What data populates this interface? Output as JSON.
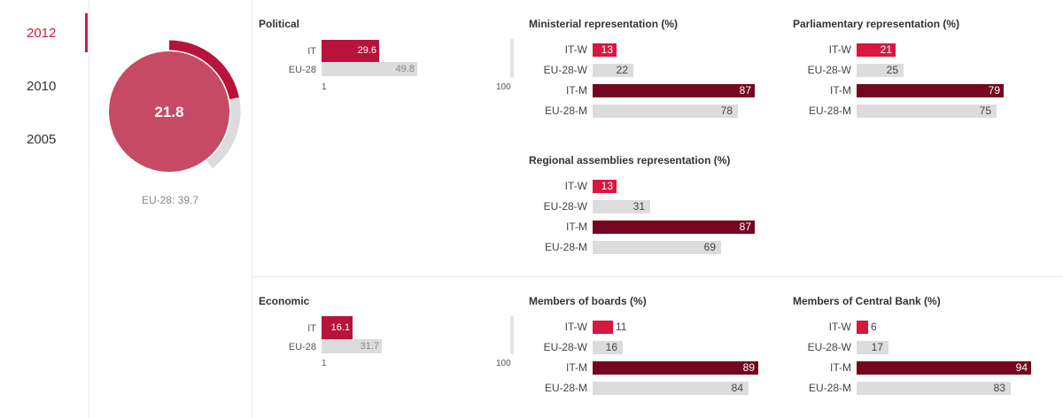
{
  "years": [
    "2012",
    "2010",
    "2005"
  ],
  "selected_year": "2012",
  "gauge": {
    "value": "21.8",
    "value_num": 21.8,
    "eu_value": 39.7,
    "caption": "EU-28: 39.7"
  },
  "colors": {
    "accent": "#c8203f",
    "dark": "#7a0a22",
    "eu": "#dcdcdc",
    "gauge_fill": "#c64a64"
  },
  "political": {
    "title": "Political",
    "rows": [
      {
        "label": "IT",
        "value": "29.6"
      },
      {
        "label": "EU-28",
        "value": "49.8"
      }
    ],
    "axis_min": "1",
    "axis_max": "100"
  },
  "economic": {
    "title": "Economic",
    "rows": [
      {
        "label": "IT",
        "value": "16.1"
      },
      {
        "label": "EU-28",
        "value": "31.7"
      }
    ],
    "axis_min": "1",
    "axis_max": "100"
  },
  "chart_data": [
    {
      "type": "bar",
      "title": "Political",
      "categories": [
        "IT",
        "EU-28"
      ],
      "values": [
        29.6,
        49.8
      ],
      "xlim": [
        1,
        100
      ]
    },
    {
      "type": "bar",
      "title": "Ministerial representation (%)",
      "categories": [
        "IT-W",
        "EU-28-W",
        "IT-M",
        "EU-28-M"
      ],
      "values": [
        13,
        22,
        87,
        78
      ]
    },
    {
      "type": "bar",
      "title": "Parliamentary representation (%)",
      "categories": [
        "IT-W",
        "EU-28-W",
        "IT-M",
        "EU-28-M"
      ],
      "values": [
        21,
        25,
        79,
        75
      ]
    },
    {
      "type": "bar",
      "title": "Regional assemblies representation (%)",
      "categories": [
        "IT-W",
        "EU-28-W",
        "IT-M",
        "EU-28-M"
      ],
      "values": [
        13,
        31,
        87,
        69
      ]
    },
    {
      "type": "bar",
      "title": "Economic",
      "categories": [
        "IT",
        "EU-28"
      ],
      "values": [
        16.1,
        31.7
      ],
      "xlim": [
        1,
        100
      ]
    },
    {
      "type": "bar",
      "title": "Members of boards (%)",
      "categories": [
        "IT-W",
        "EU-28-W",
        "IT-M",
        "EU-28-M"
      ],
      "values": [
        11,
        16,
        89,
        84
      ]
    },
    {
      "type": "bar",
      "title": "Members of Central Bank (%)",
      "categories": [
        "IT-W",
        "EU-28-W",
        "IT-M",
        "EU-28-M"
      ],
      "values": [
        6,
        17,
        94,
        83
      ]
    }
  ]
}
